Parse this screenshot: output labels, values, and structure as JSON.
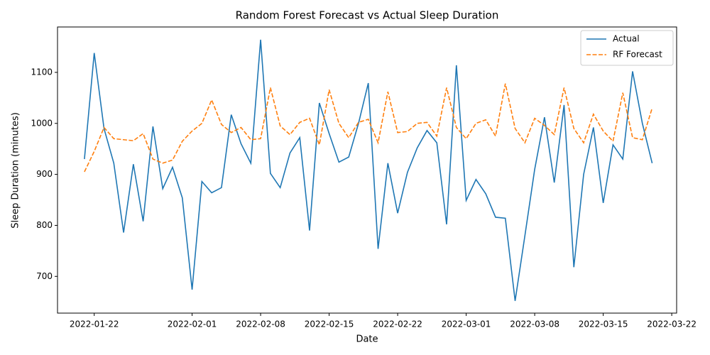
{
  "chart_data": {
    "type": "line",
    "title": "Random Forest Forecast vs Actual Sleep Duration",
    "x_label": "Date",
    "y_label": "Sleep Duration (minutes)",
    "x": [
      "2022-01-21",
      "2022-01-22",
      "2022-01-23",
      "2022-01-24",
      "2022-01-25",
      "2022-01-26",
      "2022-01-27",
      "2022-01-28",
      "2022-01-29",
      "2022-01-30",
      "2022-01-31",
      "2022-02-01",
      "2022-02-02",
      "2022-02-03",
      "2022-02-04",
      "2022-02-05",
      "2022-02-06",
      "2022-02-07",
      "2022-02-08",
      "2022-02-09",
      "2022-02-10",
      "2022-02-11",
      "2022-02-12",
      "2022-02-13",
      "2022-02-14",
      "2022-02-15",
      "2022-02-16",
      "2022-02-17",
      "2022-02-18",
      "2022-02-19",
      "2022-02-20",
      "2022-02-21",
      "2022-02-22",
      "2022-02-23",
      "2022-02-24",
      "2022-02-25",
      "2022-02-26",
      "2022-02-27",
      "2022-02-28",
      "2022-03-01",
      "2022-03-02",
      "2022-03-03",
      "2022-03-04",
      "2022-03-05",
      "2022-03-06",
      "2022-03-07",
      "2022-03-08",
      "2022-03-09",
      "2022-03-10",
      "2022-03-11",
      "2022-03-12",
      "2022-03-13",
      "2022-03-14",
      "2022-03-15",
      "2022-03-16",
      "2022-03-17",
      "2022-03-18",
      "2022-03-19",
      "2022-03-20"
    ],
    "series": [
      {
        "name": "Actual",
        "color": "#1f77b4",
        "dash": false,
        "values": [
          930,
          1138,
          990,
          922,
          786,
          920,
          808,
          994,
          872,
          914,
          854,
          674,
          886,
          864,
          874,
          1017,
          960,
          922,
          1164,
          902,
          874,
          942,
          972,
          790,
          1040,
          980,
          924,
          934,
          1000,
          1079,
          754,
          922,
          824,
          904,
          952,
          986,
          962,
          802,
          1114,
          849,
          890,
          862,
          816,
          814,
          652,
          780,
          910,
          1012,
          884,
          1036,
          718,
          900,
          992,
          844,
          958,
          930,
          1102,
          1000,
          922
        ]
      },
      {
        "name": "RF Forecast",
        "color": "#ff7f0e",
        "dash": true,
        "values": [
          905,
          945,
          992,
          970,
          968,
          966,
          980,
          930,
          922,
          928,
          965,
          985,
          1000,
          1046,
          998,
          982,
          992,
          968,
          970,
          1070,
          995,
          978,
          1002,
          1010,
          958,
          1066,
          1000,
          972,
          1002,
          1008,
          962,
          1062,
          982,
          984,
          1000,
          1002,
          975,
          1070,
          992,
          970,
          1000,
          1007,
          975,
          1078,
          990,
          962,
          1010,
          996,
          978,
          1070,
          990,
          962,
          1018,
          985,
          965,
          1060,
          972,
          968,
          1030
        ]
      }
    ],
    "xlim": [
      "2022-01-18T06:00",
      "2022-03-22T12:00"
    ],
    "xticks": [
      "2022-01-22",
      "2022-02-01",
      "2022-02-08",
      "2022-02-15",
      "2022-02-22",
      "2022-03-01",
      "2022-03-08",
      "2022-03-15",
      "2022-03-22"
    ],
    "ylim": [
      628,
      1189
    ],
    "yticks": [
      700,
      800,
      900,
      1000,
      1100
    ],
    "legend": "upper right"
  }
}
